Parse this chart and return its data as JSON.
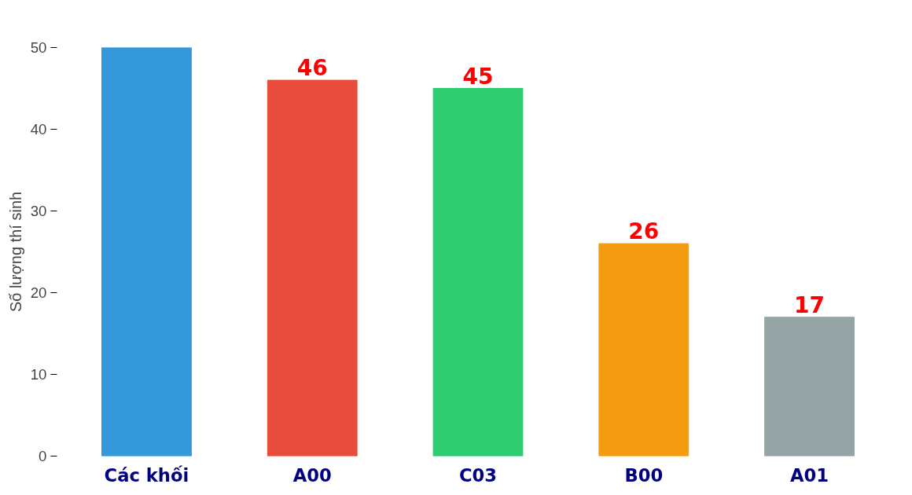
{
  "chart_data": {
    "type": "bar",
    "ylabel": "Số lượng thí sinh",
    "categories": [
      "Các khối",
      "A00",
      "C03",
      "B00",
      "A01"
    ],
    "values": [
      50,
      46,
      45,
      26,
      17
    ],
    "colors": [
      "#3498db",
      "#e74c3c",
      "#2ecc71",
      "#f39c12",
      "#95a5a6"
    ],
    "value_labels": [
      null,
      "46",
      "45",
      "26",
      "17"
    ],
    "ylim": [
      0,
      50
    ],
    "yticks": [
      0,
      10,
      20,
      30,
      40,
      50
    ],
    "grid": false
  }
}
